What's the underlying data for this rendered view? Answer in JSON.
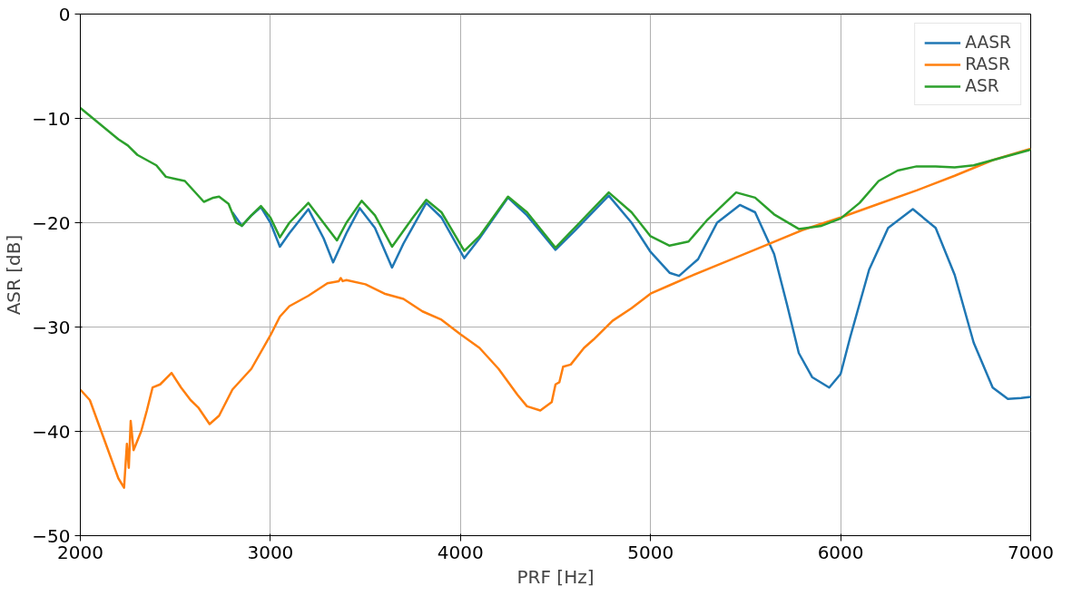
{
  "chart_data": {
    "type": "line",
    "xlabel": "PRF [Hz]",
    "ylabel": "ASR [dB]",
    "xlim": [
      2000,
      7000
    ],
    "xticks": [
      2000,
      3000,
      4000,
      5000,
      6000,
      7000
    ],
    "ylim": [
      -50,
      0
    ],
    "yticks": [
      {
        "value": -50,
        "label": "−50"
      },
      {
        "value": -40,
        "label": "−40"
      },
      {
        "value": -30,
        "label": "−30"
      },
      {
        "value": -20,
        "label": "−20"
      },
      {
        "value": -10,
        "label": "−10"
      },
      0
    ],
    "grid": true,
    "legend": "top right",
    "line_style": "solid",
    "marker": "none",
    "series": [
      {
        "name": "AASR",
        "color": "#1f77b4",
        "x": [
          2800,
          2850,
          2900,
          2950,
          3000,
          3050,
          3100,
          3200,
          3280,
          3330,
          3400,
          3470,
          3550,
          3640,
          3700,
          3820,
          3900,
          4020,
          4100,
          4250,
          4350,
          4500,
          4600,
          4780,
          4900,
          5000,
          5100,
          5150,
          5250,
          5350,
          5470,
          5550,
          5650,
          5720,
          5780,
          5850,
          5940,
          6000,
          6050,
          6150,
          6250,
          6380,
          6500,
          6600,
          6700,
          6800,
          6880,
          6950,
          7000
        ],
        "values": [
          -19.0,
          -20.3,
          -19.3,
          -18.5,
          -20.0,
          -22.3,
          -21.0,
          -18.7,
          -21.5,
          -23.8,
          -21.0,
          -18.6,
          -20.5,
          -24.3,
          -22.0,
          -18.1,
          -19.5,
          -23.4,
          -21.5,
          -17.6,
          -19.3,
          -22.6,
          -20.8,
          -17.4,
          -20.0,
          -22.8,
          -24.8,
          -25.1,
          -23.5,
          -20.0,
          -18.3,
          -19.0,
          -23.0,
          -28.0,
          -32.5,
          -34.8,
          -35.8,
          -34.5,
          -31.0,
          -24.5,
          -20.5,
          -18.7,
          -20.5,
          -25.0,
          -31.5,
          -35.8,
          -36.9,
          -36.8,
          -36.7
        ]
      },
      {
        "name": "RASR",
        "color": "#ff7f0e",
        "x": [
          2000,
          2050,
          2100,
          2150,
          2200,
          2230,
          2245,
          2255,
          2265,
          2280,
          2320,
          2350,
          2380,
          2420,
          2480,
          2530,
          2580,
          2620,
          2680,
          2730,
          2800,
          2900,
          3000,
          3050,
          3100,
          3200,
          3300,
          3360,
          3370,
          3380,
          3400,
          3500,
          3600,
          3700,
          3800,
          3900,
          4000,
          4100,
          4200,
          4300,
          4350,
          4420,
          4480,
          4500,
          4520,
          4540,
          4580,
          4650,
          4700,
          4800,
          4900,
          5000,
          5100,
          5200,
          5400,
          5600,
          5800,
          6000,
          6200,
          6400,
          6600,
          6800,
          7000
        ],
        "values": [
          -36.0,
          -37.0,
          -39.5,
          -42.0,
          -44.5,
          -45.4,
          -41.2,
          -43.5,
          -39.0,
          -41.8,
          -40.0,
          -38.0,
          -35.8,
          -35.5,
          -34.4,
          -35.8,
          -37.0,
          -37.7,
          -39.3,
          -38.5,
          -36.0,
          -34.0,
          -30.8,
          -29.0,
          -28.0,
          -27.0,
          -25.8,
          -25.6,
          -25.3,
          -25.6,
          -25.5,
          -25.9,
          -26.8,
          -27.3,
          -28.5,
          -29.3,
          -30.7,
          -32.0,
          -34.0,
          -36.5,
          -37.6,
          -38.0,
          -37.2,
          -35.5,
          -35.3,
          -33.8,
          -33.6,
          -32.0,
          -31.2,
          -29.4,
          -28.2,
          -26.8,
          -26.0,
          -25.2,
          -23.7,
          -22.2,
          -20.7,
          -19.5,
          -18.2,
          -16.9,
          -15.5,
          -14.0,
          -12.9
        ]
      },
      {
        "name": "ASR",
        "color": "#2ca02c",
        "x": [
          2000,
          2100,
          2200,
          2250,
          2300,
          2350,
          2400,
          2450,
          2500,
          2550,
          2600,
          2650,
          2700,
          2730,
          2780,
          2820,
          2850,
          2900,
          2950,
          3000,
          3050,
          3100,
          3200,
          3300,
          3350,
          3400,
          3480,
          3550,
          3640,
          3750,
          3820,
          3900,
          4020,
          4100,
          4250,
          4350,
          4500,
          4600,
          4780,
          4900,
          5000,
          5100,
          5200,
          5300,
          5450,
          5550,
          5650,
          5780,
          5900,
          6000,
          6100,
          6200,
          6300,
          6400,
          6500,
          6600,
          6700,
          6800,
          6900,
          7000
        ],
        "values": [
          -9.0,
          -10.5,
          -12.0,
          -12.6,
          -13.5,
          -14.0,
          -14.5,
          -15.6,
          -15.8,
          -16.0,
          -17.0,
          -18.0,
          -17.6,
          -17.5,
          -18.2,
          -20.0,
          -20.3,
          -19.3,
          -18.4,
          -19.5,
          -21.4,
          -20.0,
          -18.1,
          -20.5,
          -21.7,
          -20.0,
          -17.9,
          -19.3,
          -22.3,
          -19.5,
          -17.8,
          -19.0,
          -22.7,
          -21.3,
          -17.5,
          -19.0,
          -22.4,
          -20.5,
          -17.1,
          -19.0,
          -21.3,
          -22.2,
          -21.8,
          -19.7,
          -17.1,
          -17.6,
          -19.2,
          -20.6,
          -20.3,
          -19.6,
          -18.1,
          -16.0,
          -15.0,
          -14.6,
          -14.6,
          -14.7,
          -14.5,
          -14.0,
          -13.5,
          -13.0
        ]
      }
    ]
  }
}
